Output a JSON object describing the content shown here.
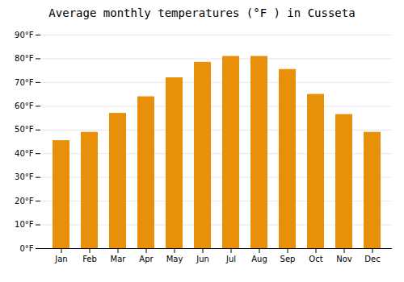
{
  "chart_data": {
    "type": "bar",
    "title": "Average monthly temperatures (°F ) in Cusseta",
    "categories": [
      "Jan",
      "Feb",
      "Mar",
      "Apr",
      "May",
      "Jun",
      "Jul",
      "Aug",
      "Sep",
      "Oct",
      "Nov",
      "Dec"
    ],
    "values": [
      45.5,
      49,
      57,
      64,
      72,
      78.5,
      81,
      81,
      75.5,
      65,
      56.5,
      49
    ],
    "color": "#E8900A",
    "ylim": [
      0,
      90
    ],
    "yticks": [
      {
        "value": 0,
        "label": "0°F"
      },
      {
        "value": 10,
        "label": "10°F"
      },
      {
        "value": 20,
        "label": "20°F"
      },
      {
        "value": 30,
        "label": "30°F"
      },
      {
        "value": 40,
        "label": "40°F"
      },
      {
        "value": 50,
        "label": "50°F"
      },
      {
        "value": 60,
        "label": "60°F"
      },
      {
        "value": 70,
        "label": "70°F"
      },
      {
        "value": 80,
        "label": "80°F"
      },
      {
        "value": 90,
        "label": "90°F"
      }
    ],
    "grid": true
  }
}
